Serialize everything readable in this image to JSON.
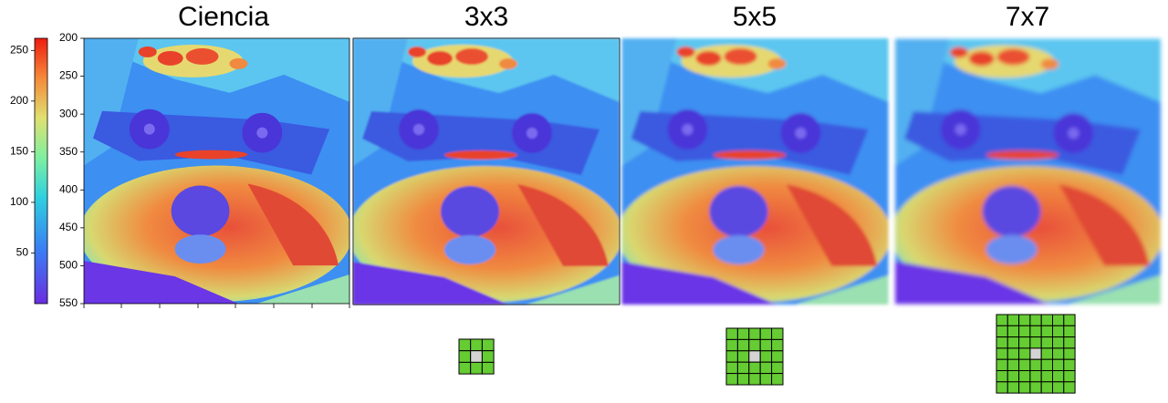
{
  "titles": [
    "Ciencia",
    "3x3",
    "5x5",
    "7x7"
  ],
  "colorbar": {
    "lim": [
      0,
      262
    ],
    "ticks": [
      50,
      100,
      150,
      200,
      250
    ]
  },
  "y_axis": {
    "lim": [
      200,
      550
    ],
    "ticks": [
      200,
      250,
      300,
      350,
      400,
      450,
      500,
      550
    ]
  }
}
